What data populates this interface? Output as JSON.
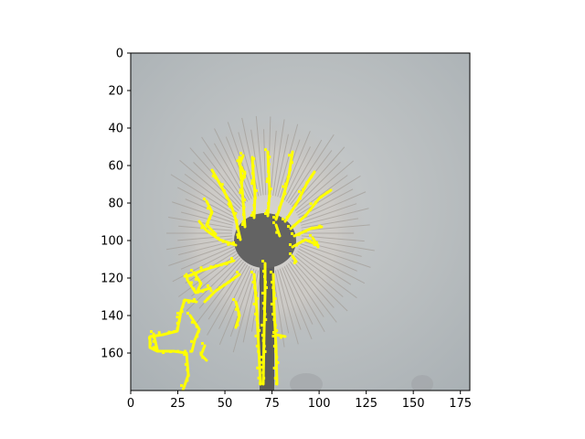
{
  "figure": {
    "x_axis": {
      "range": [
        0,
        180
      ],
      "ticks": [
        "0",
        "25",
        "50",
        "75",
        "100",
        "125",
        "150",
        "175"
      ]
    },
    "y_axis": {
      "range": [
        180,
        0
      ],
      "inverted": true,
      "ticks": [
        "0",
        "20",
        "40",
        "60",
        "80",
        "100",
        "120",
        "140",
        "160"
      ]
    },
    "image": {
      "subject": "dandelion seed head against overcast sky",
      "overlay_color": "#ffff00",
      "background_color": "#aeb4b7",
      "stem_color": "#5a5a5a"
    }
  }
}
